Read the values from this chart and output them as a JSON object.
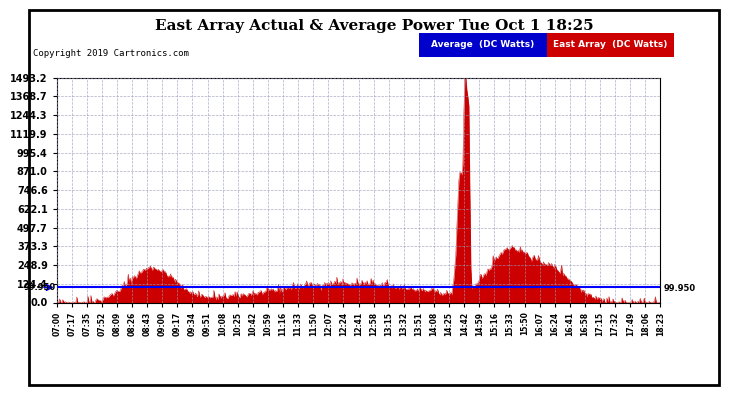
{
  "title": "East Array Actual & Average Power Tue Oct 1 18:25",
  "copyright": "Copyright 2019 Cartronics.com",
  "legend_labels": [
    "Average  (DC Watts)",
    "East Array  (DC Watts)"
  ],
  "legend_colors": [
    "#0000cc",
    "#cc0000"
  ],
  "ymax": 1493.2,
  "ymin": 0.0,
  "yticks": [
    0.0,
    124.4,
    248.9,
    373.3,
    497.7,
    622.1,
    746.6,
    871.0,
    995.4,
    1119.9,
    1244.3,
    1368.7,
    1493.2
  ],
  "average_value": 99.95,
  "avg_line_color": "#0000ff",
  "east_array_color": "#cc0000",
  "bg_color": "#ffffff",
  "plot_bg_color": "#ffffff",
  "grid_color": "#9999bb",
  "spine_color": "#000000",
  "xtick_labels": [
    "07:00",
    "07:17",
    "07:35",
    "07:52",
    "08:09",
    "08:26",
    "08:43",
    "09:00",
    "09:17",
    "09:34",
    "09:51",
    "10:08",
    "10:25",
    "10:42",
    "10:59",
    "11:16",
    "11:33",
    "11:50",
    "12:07",
    "12:24",
    "12:41",
    "12:58",
    "13:15",
    "13:32",
    "13:51",
    "14:08",
    "14:25",
    "14:42",
    "14:59",
    "15:16",
    "15:33",
    "15:50",
    "16:07",
    "16:24",
    "16:41",
    "16:58",
    "17:15",
    "17:32",
    "17:49",
    "18:06",
    "18:23"
  ],
  "annotation_avg": "99.950"
}
